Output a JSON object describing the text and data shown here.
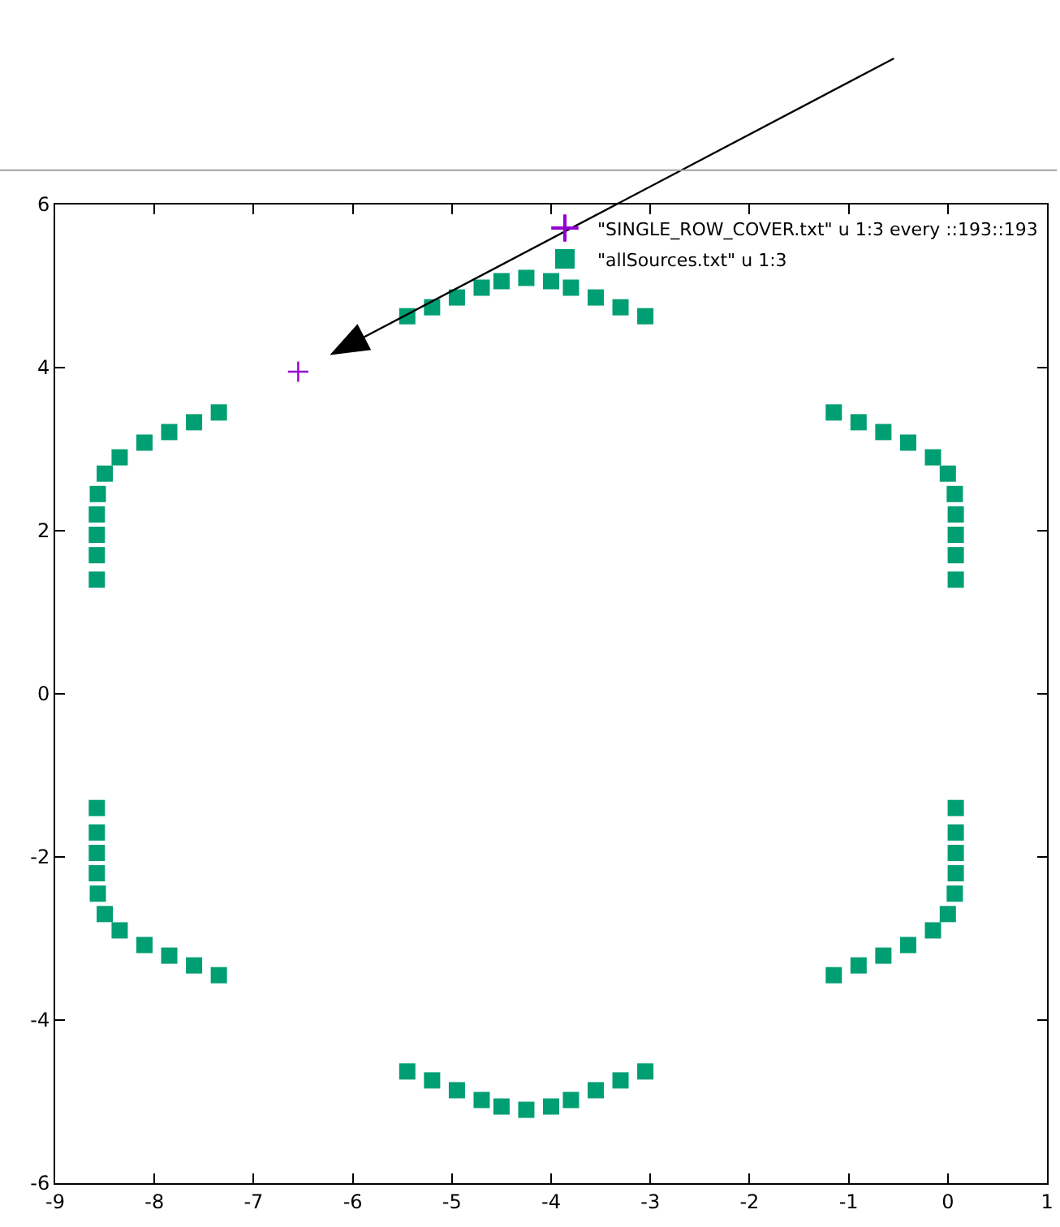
{
  "chart_data": {
    "type": "scatter",
    "x": [
      -5.45,
      -5.2,
      -4.95,
      -4.7,
      -4.5,
      -4.25,
      -4.0,
      -3.8,
      -3.55,
      -3.3,
      -3.05,
      -5.45,
      -5.2,
      -4.95,
      -4.7,
      -4.5,
      -4.25,
      -4.0,
      -3.8,
      -3.55,
      -3.3,
      -3.05,
      -7.35,
      -7.6,
      -7.85,
      -8.1,
      -8.35,
      -8.5,
      -8.57,
      -8.58,
      -8.58,
      -8.58,
      -8.58,
      -7.35,
      -7.6,
      -7.85,
      -8.1,
      -8.35,
      -8.5,
      -8.57,
      -8.58,
      -8.58,
      -8.58,
      -8.58,
      -1.15,
      -0.9,
      -0.65,
      -0.4,
      -0.15,
      0.0,
      0.07,
      0.08,
      0.08,
      0.08,
      0.08,
      -1.15,
      -0.9,
      -0.65,
      -0.4,
      -0.15,
      0.0,
      0.07,
      0.08,
      0.08,
      0.08,
      0.08
    ],
    "series": [
      {
        "name": "\"SINGLE_ROW_COVER.txt\" u 1:3 every ::193::193",
        "color": "#9400d3",
        "marker": "cross",
        "x": [
          -6.55
        ],
        "values": [
          3.95
        ]
      },
      {
        "name": "\"allSources.txt\" u 1:3",
        "color": "#009e73",
        "marker": "square",
        "values": [
          4.63,
          4.74,
          4.86,
          4.98,
          5.06,
          5.1,
          5.06,
          4.98,
          4.86,
          4.74,
          4.63,
          -4.63,
          -4.74,
          -4.86,
          -4.98,
          -5.06,
          -5.1,
          -5.06,
          -4.98,
          -4.86,
          -4.74,
          -4.63,
          3.45,
          3.33,
          3.21,
          3.08,
          2.9,
          2.7,
          2.45,
          2.2,
          1.95,
          1.7,
          1.4,
          -3.45,
          -3.33,
          -3.21,
          -3.08,
          -2.9,
          -2.7,
          -2.45,
          -2.2,
          -1.95,
          -1.7,
          -1.4,
          3.45,
          3.33,
          3.21,
          3.08,
          2.9,
          2.7,
          2.45,
          2.2,
          1.95,
          1.7,
          1.4,
          -3.45,
          -3.33,
          -3.21,
          -3.08,
          -2.9,
          -2.7,
          -2.45,
          -2.2,
          -1.95,
          -1.7,
          -1.4
        ]
      }
    ],
    "xlim": [
      -9,
      1
    ],
    "xticks": [
      -9,
      -8,
      -7,
      -6,
      -5,
      -4,
      -3,
      -2,
      -1,
      0,
      1
    ],
    "ylim": [
      -6,
      6
    ],
    "yticks": [
      -6,
      -4,
      -2,
      0,
      2,
      4,
      6
    ],
    "grid": false,
    "legend": "top right"
  }
}
